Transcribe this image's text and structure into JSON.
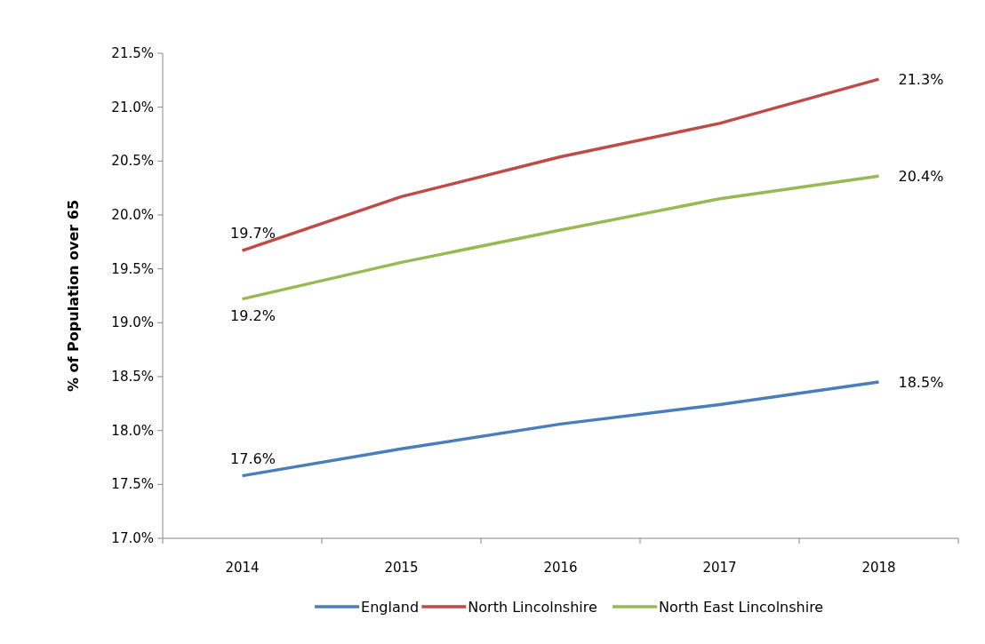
{
  "chart_data": {
    "type": "line",
    "ylabel": "% of Population over 65",
    "categories": [
      "2014",
      "2015",
      "2016",
      "2017",
      "2018"
    ],
    "ylim": [
      17.0,
      21.5
    ],
    "yticks": [
      {
        "value": 17.0,
        "label": "17.0%"
      },
      {
        "value": 17.5,
        "label": "17.5%"
      },
      {
        "value": 18.0,
        "label": "18.0%"
      },
      {
        "value": 18.5,
        "label": "18.5%"
      },
      {
        "value": 19.0,
        "label": "19.0%"
      },
      {
        "value": 19.5,
        "label": "19.5%"
      },
      {
        "value": 20.0,
        "label": "20.0%"
      },
      {
        "value": 20.5,
        "label": "20.5%"
      },
      {
        "value": 21.0,
        "label": "21.0%"
      },
      {
        "value": 21.5,
        "label": "21.5%"
      }
    ],
    "series": [
      {
        "name": "England",
        "color": "#4a7ebb",
        "values": [
          17.58,
          17.83,
          18.06,
          18.24,
          18.45
        ],
        "value_labels": [
          "17.6%",
          null,
          null,
          null,
          "18.5%"
        ]
      },
      {
        "name": "North Lincolnshire",
        "color": "#be4b48",
        "values": [
          19.67,
          20.17,
          20.54,
          20.85,
          21.26
        ],
        "value_labels": [
          "19.7%",
          null,
          null,
          null,
          "21.3%"
        ]
      },
      {
        "name": "North East Lincolnshire",
        "color": "#98b954",
        "values": [
          19.22,
          19.56,
          19.86,
          20.15,
          20.36
        ],
        "value_labels": [
          "19.2%",
          null,
          null,
          null,
          "20.4%"
        ]
      }
    ],
    "legend": "bottom",
    "marker": "none",
    "line_style": "solid",
    "grid": false
  }
}
